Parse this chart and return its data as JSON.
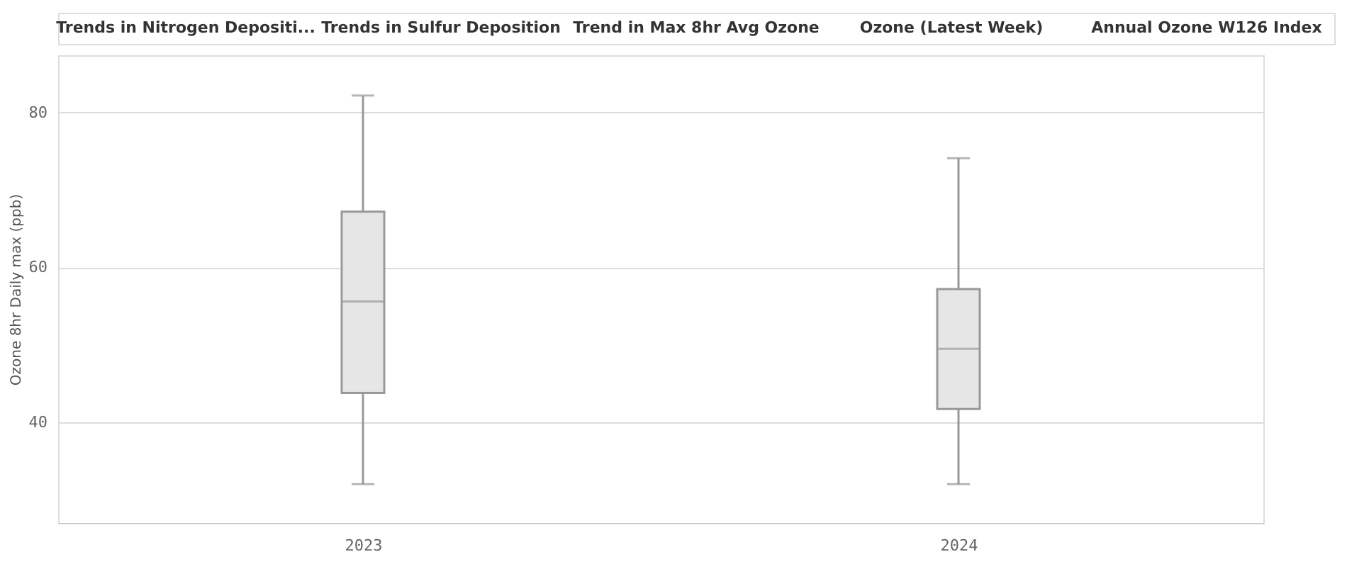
{
  "chart_data": {
    "type": "box",
    "categories": [
      "2023",
      "2024"
    ],
    "boxes": [
      {
        "low": 32.0,
        "q1": 43.8,
        "median": 55.6,
        "q3": 67.2,
        "high": 82.2
      },
      {
        "low": 32.0,
        "q1": 41.7,
        "median": 49.5,
        "q3": 57.2,
        "high": 74.1
      }
    ],
    "ylabel": "Ozone 8hr Daily max (ppb)",
    "ylim": [
      27,
      87.4
    ],
    "yticks": [
      40,
      60,
      80
    ],
    "grid": "y",
    "color": "#e6e6e6",
    "annotations": [
      "Trends in Nitrogen Depositi...",
      "Trends in Sulfur Deposition",
      "Trend in Max 8hr Avg Ozone",
      "Ozone (Latest Week)",
      "Annual Ozone W126 Index"
    ]
  }
}
